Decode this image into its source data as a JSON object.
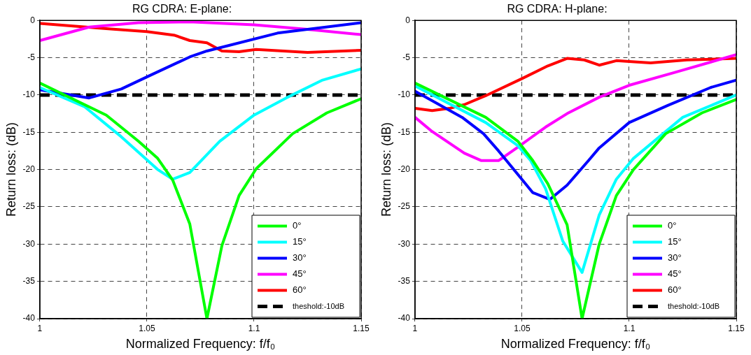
{
  "chart_data": [
    {
      "type": "line",
      "title": "RG CDRA: E-plane:",
      "xlabel": "Normalized Frequency: f/f₀",
      "ylabel": "Return loss: (dB)",
      "xlim": [
        1,
        1.15
      ],
      "xticks": [
        1,
        1.05,
        1.1,
        1.15
      ],
      "ylim": [
        -40,
        0
      ],
      "yticks": [
        0,
        -5,
        -10,
        -15,
        -20,
        -25,
        -30,
        -35,
        -40
      ],
      "grid": true,
      "legend": "bottom right",
      "line_style": "solid",
      "ref_lines": [
        {
          "axis": "y",
          "value": -10,
          "label": "theshold:-10dB",
          "color": "#000000",
          "line_style": "dashed"
        }
      ],
      "series": [
        {
          "name": "0°",
          "color": "#00ff00",
          "x": [
            1,
            1.031,
            1.046,
            1.055,
            1.062,
            1.07,
            1.078,
            1.085,
            1.093,
            1.101,
            1.118,
            1.134,
            1.15
          ],
          "values": [
            -8.4,
            -12.7,
            -16.2,
            -18.5,
            -21.4,
            -27.3,
            -40,
            -30.2,
            -23.5,
            -19.9,
            -15.2,
            -12.4,
            -10.5
          ]
        },
        {
          "name": "15°",
          "color": "#00ffff",
          "x": [
            1,
            1.021,
            1.038,
            1.055,
            1.062,
            1.07,
            1.084,
            1.1,
            1.115,
            1.132,
            1.15
          ],
          "values": [
            -9,
            -11.6,
            -15.6,
            -20,
            -21.3,
            -20.4,
            -16.2,
            -12.7,
            -10.4,
            -8,
            -6.5
          ]
        },
        {
          "name": "30°",
          "color": "#0000ff",
          "x": [
            1,
            1.023,
            1.038,
            1.052,
            1.07,
            1.078,
            1.111,
            1.15
          ],
          "values": [
            -9.3,
            -10.4,
            -9.2,
            -7.3,
            -4.9,
            -4.1,
            -1.7,
            -0.3
          ]
        },
        {
          "name": "45°",
          "color": "#ff00ff",
          "x": [
            1,
            1.023,
            1.046,
            1.07,
            1.1,
            1.125,
            1.15
          ],
          "values": [
            -2.7,
            -0.9,
            -0.3,
            -0.2,
            -0.6,
            -1.2,
            -1.9
          ]
        },
        {
          "name": "60°",
          "color": "#ff0000",
          "x": [
            1,
            1.031,
            1.05,
            1.063,
            1.07,
            1.078,
            1.085,
            1.093,
            1.101,
            1.125,
            1.15
          ],
          "values": [
            -0.4,
            -1.1,
            -1.5,
            -2,
            -2.7,
            -3,
            -4.1,
            -4.2,
            -3.9,
            -4.3,
            -4
          ]
        }
      ]
    },
    {
      "type": "line",
      "title": "RG CDRA: H-plane:",
      "xlabel": "Normalized Frequency: f/f₀",
      "ylabel": "Return loss: (dB)",
      "xlim": [
        1,
        1.15
      ],
      "xticks": [
        1,
        1.05,
        1.1,
        1.15
      ],
      "ylim": [
        -40,
        0
      ],
      "yticks": [
        0,
        -5,
        -10,
        -15,
        -20,
        -25,
        -30,
        -35,
        -40
      ],
      "grid": true,
      "legend": "bottom right",
      "line_style": "solid",
      "ref_lines": [
        {
          "axis": "y",
          "value": -10,
          "label": "theshold:-10dB",
          "color": "#000000",
          "line_style": "dashed"
        }
      ],
      "series": [
        {
          "name": "0°",
          "color": "#00ff00",
          "x": [
            1,
            1.033,
            1.048,
            1.055,
            1.062,
            1.071,
            1.078,
            1.086,
            1.094,
            1.102,
            1.117,
            1.134,
            1.15
          ],
          "values": [
            -8.4,
            -13,
            -16.2,
            -18.8,
            -21.9,
            -27.4,
            -40,
            -30,
            -23.5,
            -20,
            -15.2,
            -12.4,
            -10.6
          ]
        },
        {
          "name": "15°",
          "color": "#00ffff",
          "x": [
            1,
            1.033,
            1.048,
            1.054,
            1.061,
            1.069,
            1.078,
            1.086,
            1.094,
            1.102,
            1.125,
            1.15
          ],
          "values": [
            -8.8,
            -13.7,
            -16.8,
            -18.8,
            -22.6,
            -29.6,
            -33.8,
            -26.1,
            -21.3,
            -18.5,
            -13,
            -10
          ]
        },
        {
          "name": "30°",
          "color": "#0000ff",
          "x": [
            1,
            1.022,
            1.032,
            1.039,
            1.055,
            1.063,
            1.071,
            1.081,
            1.086,
            1.1,
            1.118,
            1.138,
            1.15
          ],
          "values": [
            -9.5,
            -13,
            -15.2,
            -17.5,
            -23.1,
            -24,
            -22.1,
            -18.8,
            -17.1,
            -13.7,
            -11.4,
            -9,
            -8
          ]
        },
        {
          "name": "45°",
          "color": "#ff00ff",
          "x": [
            1,
            1.008,
            1.023,
            1.031,
            1.039,
            1.048,
            1.061,
            1.071,
            1.086,
            1.1,
            1.121,
            1.15
          ],
          "values": [
            -13,
            -14.9,
            -17.8,
            -18.8,
            -18.8,
            -17,
            -14.3,
            -12.5,
            -10.3,
            -8.7,
            -7,
            -4.6
          ]
        },
        {
          "name": "60°",
          "color": "#ff0000",
          "x": [
            1,
            1.008,
            1.016,
            1.023,
            1.033,
            1.05,
            1.062,
            1.071,
            1.079,
            1.086,
            1.094,
            1.1,
            1.11,
            1.127,
            1.15
          ],
          "values": [
            -11.8,
            -12.1,
            -11.8,
            -11.3,
            -10.1,
            -7.8,
            -6.1,
            -5.1,
            -5.3,
            -6,
            -5.4,
            -5.5,
            -5.7,
            -5.3,
            -5.1
          ]
        }
      ]
    }
  ]
}
